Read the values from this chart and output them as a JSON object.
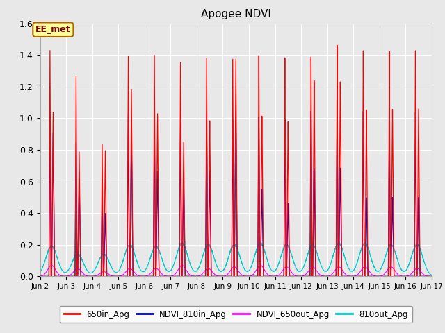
{
  "title": "Apogee NDVI",
  "xlim": [
    0,
    15
  ],
  "ylim": [
    0.0,
    1.6
  ],
  "yticks": [
    0.0,
    0.2,
    0.4,
    0.6,
    0.8,
    1.0,
    1.2,
    1.4,
    1.6
  ],
  "xtick_positions": [
    0,
    1,
    2,
    3,
    4,
    5,
    6,
    7,
    8,
    9,
    10,
    11,
    12,
    13,
    14,
    15
  ],
  "xtick_labels": [
    "Jun 2",
    "Jun 3",
    "Jun 4",
    "Jun 5",
    "Jun 6",
    "Jun 7",
    "Jun 8",
    "Jun 9",
    "Jun 10",
    "Jun 11",
    "Jun 12",
    "Jun 13",
    "Jun 14",
    "Jun 15",
    "Jun 16",
    "Jun 17"
  ],
  "legend_box_label": "EE_met",
  "legend_entries": [
    "650in_Apg",
    "NDVI_810in_Apg",
    "NDVI_650out_Apg",
    "810out_Apg"
  ],
  "line_colors": [
    "#ff0000",
    "#0000cc",
    "#ff00ff",
    "#00cccc"
  ],
  "fig_bg_color": "#e8e8e8",
  "plot_bg_color": "#e8e8e8",
  "red_peaks": [
    1.43,
    1.27,
    0.84,
    1.41,
    1.42,
    1.38,
    1.41,
    1.41,
    1.43,
    1.41,
    1.41,
    1.48,
    1.44,
    1.43,
    1.43
  ],
  "red_peaks2": [
    1.04,
    0.79,
    0.8,
    1.19,
    1.04,
    0.86,
    1.0,
    1.4,
    1.03,
    0.99,
    1.25,
    1.24,
    1.06,
    1.06,
    1.06
  ],
  "blue_peaks": [
    1.04,
    0.85,
    0.53,
    1.04,
    1.03,
    1.02,
    1.01,
    1.02,
    1.03,
    1.01,
    1.06,
    1.06,
    1.05,
    1.04,
    1.04
  ],
  "blue_peaks2": [
    0.91,
    0.63,
    0.4,
    0.9,
    0.67,
    0.6,
    0.68,
    1.02,
    0.56,
    0.47,
    0.69,
    0.69,
    0.5,
    0.5,
    0.5
  ],
  "magenta_peaks": [
    0.07,
    0.05,
    0.03,
    0.05,
    0.05,
    0.07,
    0.05,
    0.06,
    0.07,
    0.06,
    0.06,
    0.06,
    0.06,
    0.06,
    0.05
  ],
  "cyan_peaks": [
    0.19,
    0.14,
    0.14,
    0.2,
    0.19,
    0.21,
    0.2,
    0.2,
    0.21,
    0.2,
    0.2,
    0.21,
    0.21,
    0.2,
    0.2
  ]
}
